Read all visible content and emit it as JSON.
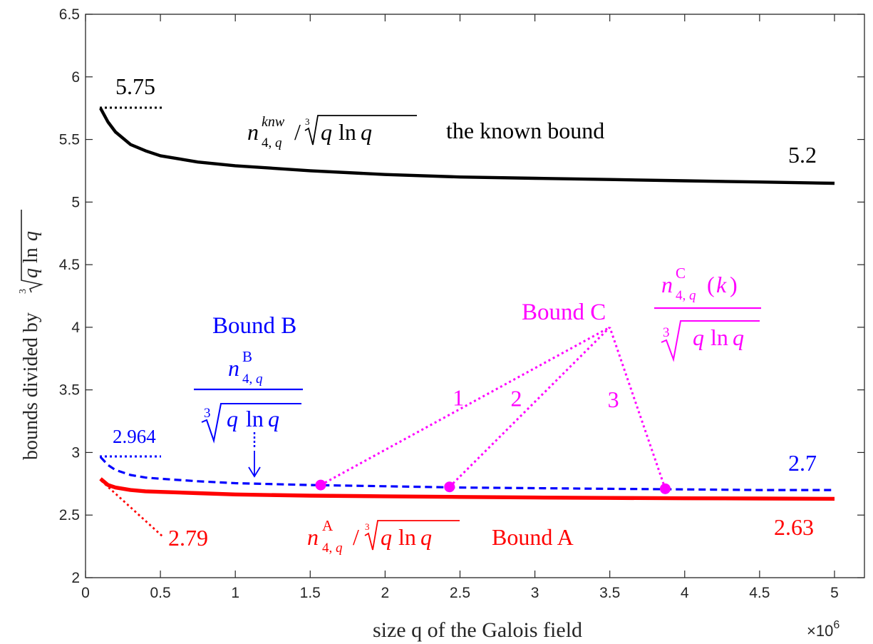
{
  "chart_data": {
    "type": "line",
    "xlabel": "size q of the Galois field",
    "x_exponent_base": "×10",
    "x_exponent_power": "6",
    "ylabel": "bounds divided by ∛(q ln q)",
    "xlim": [
      0,
      5200000
    ],
    "ylim": [
      2,
      6.5
    ],
    "grid": false,
    "x_ticks": [
      0,
      500000,
      1000000,
      1500000,
      2000000,
      2500000,
      3000000,
      3500000,
      4000000,
      4500000,
      5000000
    ],
    "x_tick_labels": [
      "0",
      "0.5",
      "1",
      "1.5",
      "2",
      "2.5",
      "3",
      "3.5",
      "4",
      "4.5",
      "5"
    ],
    "y_ticks": [
      2,
      2.5,
      3,
      3.5,
      4,
      4.5,
      5,
      5.5,
      6,
      6.5
    ],
    "y_tick_labels": [
      "2",
      "2.5",
      "3",
      "3.5",
      "4",
      "4.5",
      "5",
      "5.5",
      "6",
      "6.5"
    ],
    "series": [
      {
        "key": "known",
        "style": "solid",
        "color": "#000000",
        "x": [
          100000,
          150000,
          200000,
          300000,
          400000,
          500000,
          750000,
          1000000,
          1500000,
          2000000,
          2500000,
          3000000,
          3500000,
          4000000,
          4500000,
          5000000
        ],
        "y": [
          5.75,
          5.64,
          5.56,
          5.46,
          5.41,
          5.37,
          5.32,
          5.29,
          5.25,
          5.22,
          5.2,
          5.19,
          5.18,
          5.17,
          5.16,
          5.15
        ]
      },
      {
        "key": "B",
        "style": "dashed",
        "color": "#0000ff",
        "x": [
          100000,
          150000,
          200000,
          300000,
          400000,
          500000,
          750000,
          1000000,
          1500000,
          2000000,
          2500000,
          3000000,
          3500000,
          4000000,
          4500000,
          5000000
        ],
        "y": [
          2.964,
          2.9,
          2.86,
          2.82,
          2.8,
          2.79,
          2.77,
          2.755,
          2.74,
          2.73,
          2.72,
          2.715,
          2.71,
          2.705,
          2.7,
          2.7
        ]
      },
      {
        "key": "A",
        "style": "solid",
        "color": "#ff0000",
        "x": [
          100000,
          150000,
          200000,
          300000,
          400000,
          500000,
          750000,
          1000000,
          1500000,
          2000000,
          2500000,
          3000000,
          3500000,
          4000000,
          4500000,
          5000000
        ],
        "y": [
          2.79,
          2.74,
          2.72,
          2.7,
          2.69,
          2.685,
          2.675,
          2.665,
          2.655,
          2.65,
          2.645,
          2.64,
          2.637,
          2.634,
          2.632,
          2.63
        ]
      }
    ],
    "bound_c_points": [
      {
        "label": "1",
        "x": 1570000,
        "y": 2.74
      },
      {
        "label": "2",
        "x": 2430000,
        "y": 2.725
      },
      {
        "label": "3",
        "x": 3870000,
        "y": 2.71
      }
    ],
    "bound_c_apex": {
      "x": 3500000,
      "y": 4.0
    },
    "annotations": {
      "known_start": "5.75",
      "known_end": "5.2",
      "known_caption": "the known bound",
      "b_title": "Bound B",
      "b_start": "2.964",
      "b_end": "2.7",
      "a_start": "2.79",
      "a_end": "2.63",
      "a_title": "Bound A",
      "c_title": "Bound C",
      "n": "n",
      "sub_index": "4,",
      "q": "q",
      "sup_knw": "knw",
      "sup_a": "A",
      "sup_b": "B",
      "sup_c": "C",
      "root_index": "3",
      "ln": "ln",
      "k": "k",
      "lparen": "(",
      "rparen": ")",
      "slash": "/",
      "ylabel_prefix": "bounds divided by"
    },
    "colors": {
      "known": "#000000",
      "bound_a": "#ff0000",
      "bound_b": "#0000ff",
      "bound_c": "#ff00ff",
      "axis": "#262626"
    }
  }
}
